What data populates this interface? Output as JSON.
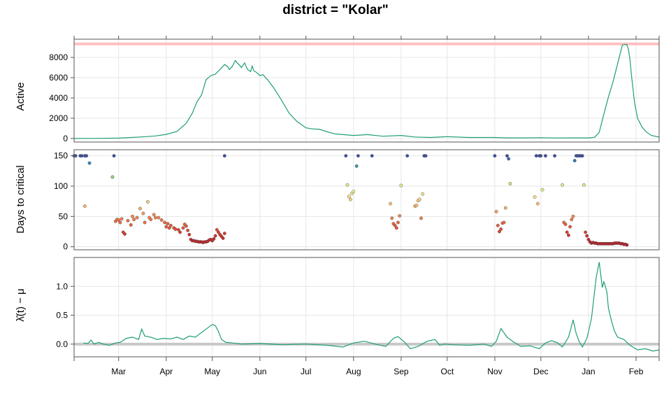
{
  "title": "district = \"Kolar\"",
  "chart_data": [
    {
      "type": "line",
      "panel": "Active",
      "ylabel": "Active",
      "ylim": [
        -350,
        9800
      ],
      "yticks": [
        0,
        2000,
        4000,
        6000,
        8000
      ],
      "ytick_labels": [
        "0",
        "2000",
        "4000",
        "6000",
        "8000"
      ],
      "reference_line": {
        "y": 9330,
        "color": "#ffc0c0"
      },
      "grid": true,
      "colors": {
        "line": "#1f9e78"
      },
      "series": [
        {
          "x": [
            "2020-02-01",
            "2020-02-15",
            "2020-03-01",
            "2020-03-15",
            "2020-03-25",
            "2020-04-01",
            "2020-04-08",
            "2020-04-14",
            "2020-04-18",
            "2020-04-21",
            "2020-04-24",
            "2020-04-27",
            "2020-04-30",
            "2020-05-01",
            "2020-05-03",
            "2020-05-06",
            "2020-05-09",
            "2020-05-11",
            "2020-05-12",
            "2020-05-14",
            "2020-05-16",
            "2020-05-17",
            "2020-05-19",
            "2020-05-20",
            "2020-05-22",
            "2020-05-24",
            "2020-05-26",
            "2020-05-27",
            "2020-05-28",
            "2020-05-30",
            "2020-06-01",
            "2020-06-03",
            "2020-06-06",
            "2020-06-10",
            "2020-06-15",
            "2020-06-20",
            "2020-06-25",
            "2020-07-01",
            "2020-07-05",
            "2020-07-10",
            "2020-07-15",
            "2020-07-20",
            "2020-08-01",
            "2020-08-10",
            "2020-08-20",
            "2020-09-01",
            "2020-09-10",
            "2020-09-20",
            "2020-10-01",
            "2020-10-15",
            "2020-11-01",
            "2020-11-10",
            "2020-11-20",
            "2020-12-01",
            "2020-12-10",
            "2020-12-20",
            "2021-01-01",
            "2021-01-05",
            "2021-01-08",
            "2021-01-11",
            "2021-01-14",
            "2021-01-17",
            "2021-01-20",
            "2021-01-23",
            "2021-01-25",
            "2021-01-26",
            "2021-01-27",
            "2021-01-28",
            "2021-01-29",
            "2021-01-31",
            "2021-02-02",
            "2021-02-05",
            "2021-02-08",
            "2021-02-11",
            "2021-02-14",
            "2021-02-16"
          ],
          "values": [
            0,
            10,
            40,
            150,
            250,
            400,
            700,
            1500,
            2500,
            3600,
            4300,
            5800,
            6200,
            6250,
            6350,
            6800,
            7300,
            7100,
            6800,
            7100,
            7700,
            7500,
            7200,
            7000,
            7450,
            6800,
            6600,
            7150,
            6700,
            6500,
            6200,
            6300,
            5800,
            5000,
            3800,
            2500,
            1700,
            1050,
            950,
            900,
            650,
            450,
            300,
            380,
            220,
            300,
            150,
            100,
            180,
            100,
            100,
            60,
            60,
            80,
            50,
            60,
            60,
            120,
            600,
            2400,
            4100,
            5600,
            7400,
            9200,
            9300,
            9250,
            8800,
            7800,
            6200,
            3500,
            2000,
            1100,
            600,
            300,
            200,
            150
          ]
        }
      ]
    },
    {
      "type": "scatter",
      "panel": "Days to critical",
      "ylabel": "Days to critical",
      "ylim": [
        -5,
        160
      ],
      "yticks": [
        0,
        50,
        100,
        150
      ],
      "ytick_labels": [
        "0",
        "50",
        "100",
        "150"
      ],
      "grid": true,
      "colors": {
        "low": "#b2182b",
        "mid": "#fdae61",
        "high": "#3f4fa0"
      },
      "points": [
        [
          "2020-02-01",
          150
        ],
        [
          "2020-02-02",
          150
        ],
        [
          "2020-02-05",
          150
        ],
        [
          "2020-02-06",
          150
        ],
        [
          "2020-02-08",
          150
        ],
        [
          "2020-02-09",
          150
        ],
        [
          "2020-02-11",
          138
        ],
        [
          "2020-02-08",
          67
        ],
        [
          "2020-02-26",
          115
        ],
        [
          "2020-02-27",
          150
        ],
        [
          "2020-02-28",
          42
        ],
        [
          "2020-02-29",
          45
        ],
        [
          "2020-03-01",
          44
        ],
        [
          "2020-03-02",
          40
        ],
        [
          "2020-03-03",
          46
        ],
        [
          "2020-03-04",
          24
        ],
        [
          "2020-03-05",
          21
        ],
        [
          "2020-03-07",
          43
        ],
        [
          "2020-03-09",
          36
        ],
        [
          "2020-03-10",
          50
        ],
        [
          "2020-03-11",
          45
        ],
        [
          "2020-03-13",
          48
        ],
        [
          "2020-03-15",
          63
        ],
        [
          "2020-03-17",
          55
        ],
        [
          "2020-03-18",
          40
        ],
        [
          "2020-03-20",
          74
        ],
        [
          "2020-03-21",
          48
        ],
        [
          "2020-03-22",
          45
        ],
        [
          "2020-03-24",
          53
        ],
        [
          "2020-03-25",
          48
        ],
        [
          "2020-03-27",
          48
        ],
        [
          "2020-03-29",
          44
        ],
        [
          "2020-03-31",
          40
        ],
        [
          "2020-04-01",
          33
        ],
        [
          "2020-04-02",
          38
        ],
        [
          "2020-04-03",
          31
        ],
        [
          "2020-04-04",
          35
        ],
        [
          "2020-04-06",
          31
        ],
        [
          "2020-04-07",
          29
        ],
        [
          "2020-04-09",
          28
        ],
        [
          "2020-04-10",
          24
        ],
        [
          "2020-04-12",
          31
        ],
        [
          "2020-04-13",
          37
        ],
        [
          "2020-04-14",
          34
        ],
        [
          "2020-04-15",
          27
        ],
        [
          "2020-04-16",
          20
        ],
        [
          "2020-04-17",
          12
        ],
        [
          "2020-04-18",
          10
        ],
        [
          "2020-04-19",
          10
        ],
        [
          "2020-04-20",
          9
        ],
        [
          "2020-04-21",
          9
        ],
        [
          "2020-04-22",
          8
        ],
        [
          "2020-04-23",
          8
        ],
        [
          "2020-04-24",
          8
        ],
        [
          "2020-04-25",
          7
        ],
        [
          "2020-04-26",
          8
        ],
        [
          "2020-04-27",
          8
        ],
        [
          "2020-04-28",
          9
        ],
        [
          "2020-04-29",
          11
        ],
        [
          "2020-04-30",
          12
        ],
        [
          "2020-05-01",
          10
        ],
        [
          "2020-05-02",
          13
        ],
        [
          "2020-05-03",
          18
        ],
        [
          "2020-05-04",
          28
        ],
        [
          "2020-05-05",
          24
        ],
        [
          "2020-05-06",
          20
        ],
        [
          "2020-05-07",
          17
        ],
        [
          "2020-05-08",
          14
        ],
        [
          "2020-05-09",
          22
        ],
        [
          "2020-05-09",
          150
        ],
        [
          "2020-07-27",
          150
        ],
        [
          "2020-07-28",
          102
        ],
        [
          "2020-07-29",
          83
        ],
        [
          "2020-07-30",
          78
        ],
        [
          "2020-07-31",
          88
        ],
        [
          "2020-08-01",
          91
        ],
        [
          "2020-08-03",
          133
        ],
        [
          "2020-08-04",
          150
        ],
        [
          "2020-08-13",
          150
        ],
        [
          "2020-08-25",
          71
        ],
        [
          "2020-08-26",
          47
        ],
        [
          "2020-08-27",
          38
        ],
        [
          "2020-08-28",
          35
        ],
        [
          "2020-08-29",
          31
        ],
        [
          "2020-08-30",
          40
        ],
        [
          "2020-08-31",
          51
        ],
        [
          "2020-09-01",
          101
        ],
        [
          "2020-09-05",
          150
        ],
        [
          "2020-09-10",
          67
        ],
        [
          "2020-09-11",
          68
        ],
        [
          "2020-09-12",
          76
        ],
        [
          "2020-09-13",
          78
        ],
        [
          "2020-09-14",
          47
        ],
        [
          "2020-09-15",
          87
        ],
        [
          "2020-09-16",
          150
        ],
        [
          "2020-09-17",
          150
        ],
        [
          "2020-11-01",
          150
        ],
        [
          "2020-11-02",
          58
        ],
        [
          "2020-11-03",
          35
        ],
        [
          "2020-11-04",
          25
        ],
        [
          "2020-11-05",
          29
        ],
        [
          "2020-11-06",
          39
        ],
        [
          "2020-11-07",
          40
        ],
        [
          "2020-11-08",
          64
        ],
        [
          "2020-11-09",
          150
        ],
        [
          "2020-11-10",
          145
        ],
        [
          "2020-11-11",
          104
        ],
        [
          "2020-11-27",
          82
        ],
        [
          "2020-11-28",
          150
        ],
        [
          "2020-11-29",
          71
        ],
        [
          "2020-11-30",
          150
        ],
        [
          "2020-12-01",
          150
        ],
        [
          "2020-12-02",
          94
        ],
        [
          "2020-12-04",
          150
        ],
        [
          "2020-12-10",
          150
        ],
        [
          "2020-12-15",
          102
        ],
        [
          "2020-12-16",
          40
        ],
        [
          "2020-12-17",
          37
        ],
        [
          "2020-12-18",
          24
        ],
        [
          "2020-12-19",
          19
        ],
        [
          "2020-12-20",
          33
        ],
        [
          "2020-12-21",
          45
        ],
        [
          "2020-12-22",
          50
        ],
        [
          "2020-12-23",
          142
        ],
        [
          "2020-12-24",
          150
        ],
        [
          "2020-12-25",
          150
        ],
        [
          "2020-12-26",
          150
        ],
        [
          "2020-12-27",
          150
        ],
        [
          "2020-12-28",
          150
        ],
        [
          "2020-12-29",
          102
        ],
        [
          "2020-12-30",
          24
        ],
        [
          "2020-12-31",
          18
        ],
        [
          "2021-01-01",
          12
        ],
        [
          "2021-01-02",
          8
        ],
        [
          "2021-01-03",
          6
        ],
        [
          "2021-01-04",
          7
        ],
        [
          "2021-01-05",
          6
        ],
        [
          "2021-01-06",
          6
        ],
        [
          "2021-01-07",
          5
        ],
        [
          "2021-01-08",
          5
        ],
        [
          "2021-01-09",
          5
        ],
        [
          "2021-01-10",
          5
        ],
        [
          "2021-01-11",
          5
        ],
        [
          "2021-01-12",
          5
        ],
        [
          "2021-01-13",
          5
        ],
        [
          "2021-01-14",
          5
        ],
        [
          "2021-01-15",
          5
        ],
        [
          "2021-01-16",
          5
        ],
        [
          "2021-01-17",
          5
        ],
        [
          "2021-01-18",
          6
        ],
        [
          "2021-01-19",
          6
        ],
        [
          "2021-01-20",
          6
        ],
        [
          "2021-01-21",
          6
        ],
        [
          "2021-01-22",
          5
        ],
        [
          "2021-01-23",
          5
        ],
        [
          "2021-01-24",
          4
        ],
        [
          "2021-01-25",
          4
        ],
        [
          "2021-01-26",
          3
        ]
      ]
    },
    {
      "type": "line",
      "panel": "lambda",
      "ylabel": "λ̂(t) − μ",
      "ylim": [
        -0.22,
        1.5
      ],
      "yticks": [
        0.0,
        0.5,
        1.0
      ],
      "ytick_labels": [
        "0.0",
        "0.5",
        "1.0"
      ],
      "reference_line": {
        "y": 0,
        "color": "#c8c8c8"
      },
      "grid": true,
      "colors": {
        "line": "#1f9e78"
      },
      "series": [
        {
          "x": [
            "2020-02-07",
            "2020-02-10",
            "2020-02-12",
            "2020-02-14",
            "2020-02-17",
            "2020-02-20",
            "2020-02-24",
            "2020-02-28",
            "2020-03-02",
            "2020-03-06",
            "2020-03-10",
            "2020-03-14",
            "2020-03-16",
            "2020-03-18",
            "2020-03-22",
            "2020-03-26",
            "2020-03-30",
            "2020-04-04",
            "2020-04-08",
            "2020-04-12",
            "2020-04-16",
            "2020-04-20",
            "2020-04-24",
            "2020-04-28",
            "2020-05-01",
            "2020-05-03",
            "2020-05-05",
            "2020-05-07",
            "2020-05-10",
            "2020-05-14",
            "2020-05-20",
            "2020-06-01",
            "2020-06-15",
            "2020-07-01",
            "2020-07-15",
            "2020-07-25",
            "2020-08-01",
            "2020-08-08",
            "2020-08-15",
            "2020-08-22",
            "2020-08-27",
            "2020-08-30",
            "2020-09-03",
            "2020-09-07",
            "2020-09-12",
            "2020-09-18",
            "2020-09-23",
            "2020-09-26",
            "2020-09-29",
            "2020-10-05",
            "2020-10-15",
            "2020-10-25",
            "2020-10-30",
            "2020-11-02",
            "2020-11-05",
            "2020-11-09",
            "2020-11-13",
            "2020-11-18",
            "2020-11-24",
            "2020-11-30",
            "2020-12-04",
            "2020-12-08",
            "2020-12-12",
            "2020-12-15",
            "2020-12-19",
            "2020-12-22",
            "2020-12-24",
            "2020-12-26",
            "2020-12-28",
            "2020-12-31",
            "2021-01-03",
            "2021-01-06",
            "2021-01-08",
            "2021-01-10",
            "2021-01-11",
            "2021-01-12",
            "2021-01-13",
            "2021-01-14",
            "2021-01-16",
            "2021-01-18",
            "2021-01-20",
            "2021-01-24",
            "2021-01-28",
            "2021-02-02",
            "2021-02-07",
            "2021-02-12",
            "2021-02-16"
          ],
          "values": [
            0.02,
            0.01,
            0.07,
            0.0,
            0.03,
            0.0,
            -0.02,
            0.02,
            0.03,
            0.1,
            0.12,
            0.08,
            0.26,
            0.14,
            0.12,
            0.08,
            0.1,
            0.09,
            0.12,
            0.08,
            0.14,
            0.12,
            0.2,
            0.28,
            0.34,
            0.32,
            0.22,
            0.08,
            0.03,
            0.02,
            0.0,
            0.01,
            -0.01,
            0.0,
            -0.02,
            -0.05,
            0.02,
            0.05,
            0.0,
            -0.04,
            0.1,
            0.13,
            0.04,
            -0.08,
            -0.04,
            0.05,
            0.08,
            -0.02,
            0.0,
            -0.01,
            -0.02,
            0.0,
            -0.04,
            0.05,
            0.27,
            0.12,
            0.04,
            -0.04,
            -0.03,
            -0.08,
            0.02,
            0.06,
            0.02,
            -0.05,
            0.12,
            0.42,
            0.18,
            0.04,
            -0.05,
            0.1,
            0.45,
            1.15,
            1.42,
            0.98,
            1.08,
            1.0,
            0.9,
            0.62,
            0.4,
            0.22,
            0.12,
            0.08,
            -0.02,
            -0.1,
            -0.08,
            -0.12,
            -0.1
          ]
        }
      ]
    }
  ],
  "x_axis": {
    "ticks": [
      "2020-03-01",
      "2020-04-01",
      "2020-05-01",
      "2020-06-01",
      "2020-07-01",
      "2020-08-01",
      "2020-09-01",
      "2020-10-01",
      "2020-11-01",
      "2020-12-01",
      "2021-01-01",
      "2021-02-01"
    ],
    "tick_labels": [
      "Mar",
      "Apr",
      "May",
      "Jun",
      "Jul",
      "Aug",
      "Sep",
      "Oct",
      "Nov",
      "Dec",
      "Jan",
      "Feb"
    ],
    "range": [
      "2020-02-01",
      "2021-02-16"
    ]
  }
}
